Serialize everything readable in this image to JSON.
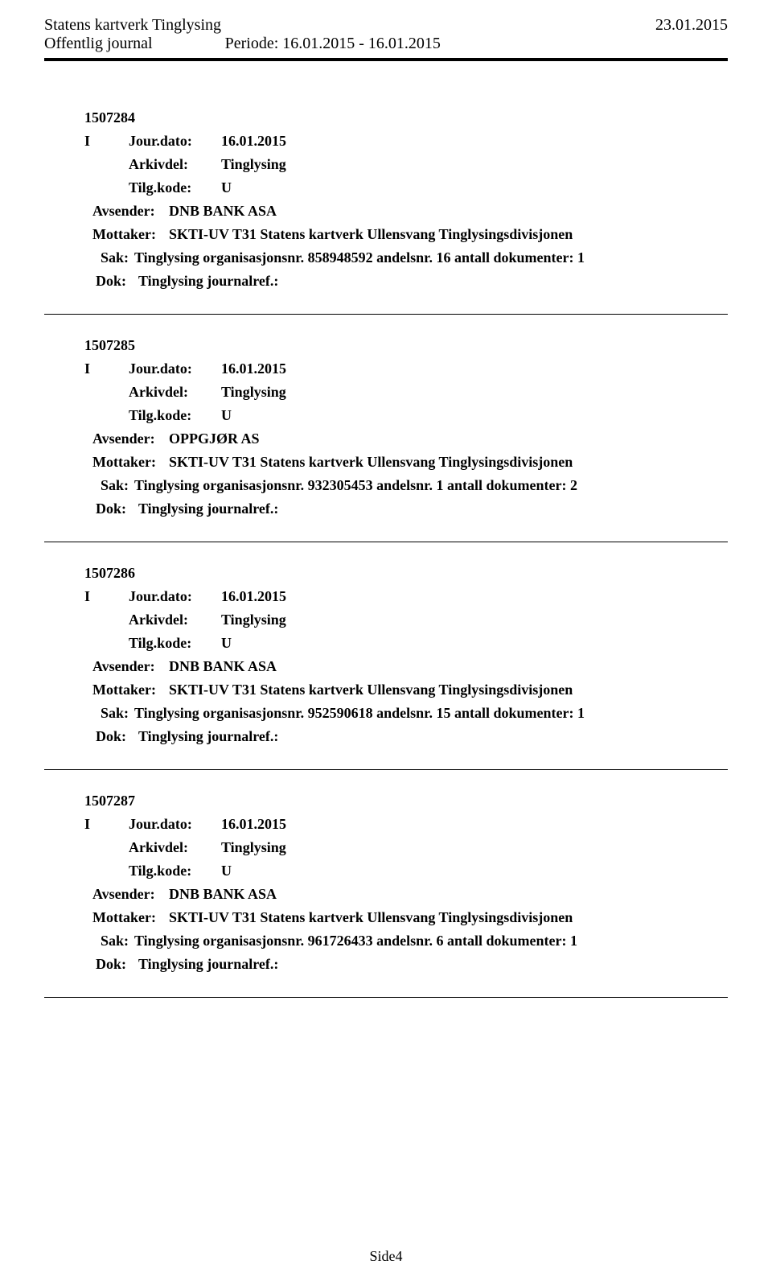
{
  "header": {
    "org": "Statens kartverk Tinglysing",
    "date": "23.01.2015",
    "journal_label": "Offentlig journal",
    "period_label": "Periode: 16.01.2015 - 16.01.2015"
  },
  "entries": [
    {
      "id": "1507284",
      "io": "I",
      "jourdato_label": "Jour.dato:",
      "jourdato": "16.01.2015",
      "arkivdel_label": "Arkivdel:",
      "arkivdel": "Tinglysing",
      "tilgkode_label": "Tilg.kode:",
      "tilgkode": "U",
      "avsender_label": "Avsender:",
      "avsender": "DNB BANK ASA",
      "mottaker_label": "Mottaker:",
      "mottaker": "SKTI-UV T31 Statens kartverk Ullensvang Tinglysingsdivisjonen",
      "sak_label": "Sak:",
      "sak": "Tinglysing organisasjonsnr. 858948592 andelsnr. 16 antall dokumenter: 1",
      "dok_label": "Dok:",
      "dok": "Tinglysing journalref.:"
    },
    {
      "id": "1507285",
      "io": "I",
      "jourdato_label": "Jour.dato:",
      "jourdato": "16.01.2015",
      "arkivdel_label": "Arkivdel:",
      "arkivdel": "Tinglysing",
      "tilgkode_label": "Tilg.kode:",
      "tilgkode": "U",
      "avsender_label": "Avsender:",
      "avsender": "OPPGJØR AS",
      "mottaker_label": "Mottaker:",
      "mottaker": "SKTI-UV T31 Statens kartverk Ullensvang Tinglysingsdivisjonen",
      "sak_label": "Sak:",
      "sak": "Tinglysing organisasjonsnr. 932305453 andelsnr. 1 antall dokumenter: 2",
      "dok_label": "Dok:",
      "dok": "Tinglysing journalref.:"
    },
    {
      "id": "1507286",
      "io": "I",
      "jourdato_label": "Jour.dato:",
      "jourdato": "16.01.2015",
      "arkivdel_label": "Arkivdel:",
      "arkivdel": "Tinglysing",
      "tilgkode_label": "Tilg.kode:",
      "tilgkode": "U",
      "avsender_label": "Avsender:",
      "avsender": "DNB BANK ASA",
      "mottaker_label": "Mottaker:",
      "mottaker": "SKTI-UV T31 Statens kartverk Ullensvang Tinglysingsdivisjonen",
      "sak_label": "Sak:",
      "sak": "Tinglysing organisasjonsnr. 952590618 andelsnr. 15 antall dokumenter: 1",
      "dok_label": "Dok:",
      "dok": "Tinglysing journalref.:"
    },
    {
      "id": "1507287",
      "io": "I",
      "jourdato_label": "Jour.dato:",
      "jourdato": "16.01.2015",
      "arkivdel_label": "Arkivdel:",
      "arkivdel": "Tinglysing",
      "tilgkode_label": "Tilg.kode:",
      "tilgkode": "U",
      "avsender_label": "Avsender:",
      "avsender": "DNB BANK ASA",
      "mottaker_label": "Mottaker:",
      "mottaker": "SKTI-UV T31 Statens kartverk Ullensvang Tinglysingsdivisjonen",
      "sak_label": "Sak:",
      "sak": "Tinglysing organisasjonsnr. 961726433 andelsnr. 6 antall dokumenter: 1",
      "dok_label": "Dok:",
      "dok": "Tinglysing journalref.:"
    }
  ],
  "footer": {
    "page": "Side4"
  }
}
